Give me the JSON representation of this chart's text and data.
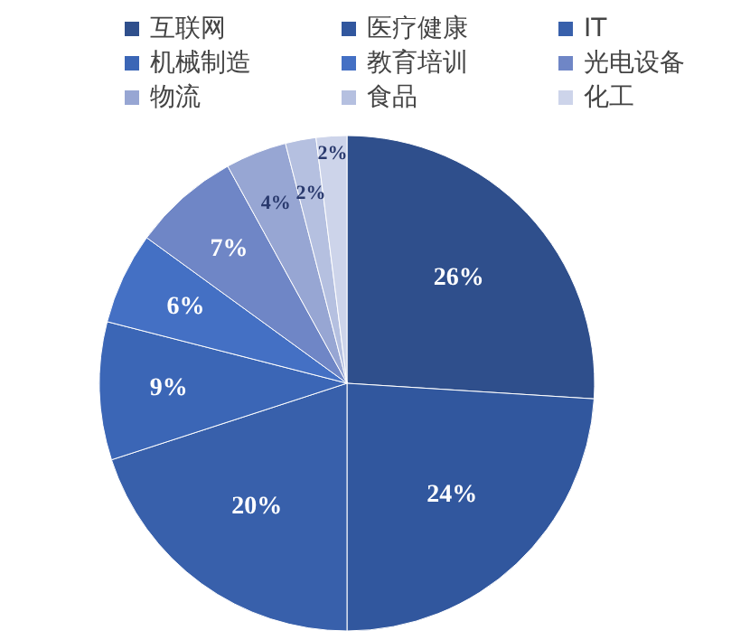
{
  "chart_data": {
    "type": "pie",
    "categories": [
      "互联网",
      "医疗健康",
      "IT",
      "机械制造",
      "教育培训",
      "光电设备",
      "物流",
      "食品",
      "化工"
    ],
    "values": [
      26,
      24,
      20,
      9,
      6,
      7,
      4,
      2,
      2
    ],
    "colors": [
      "#2f4f8c",
      "#31579e",
      "#3860ab",
      "#3b66b6",
      "#4470c4",
      "#6f86c6",
      "#97a6d3",
      "#b5c0e0",
      "#cdd4ea"
    ],
    "value_labels": [
      "26%",
      "24%",
      "20%",
      "9%",
      "6%",
      "7%",
      "4%",
      "2%",
      "2%"
    ],
    "legend": "top"
  }
}
